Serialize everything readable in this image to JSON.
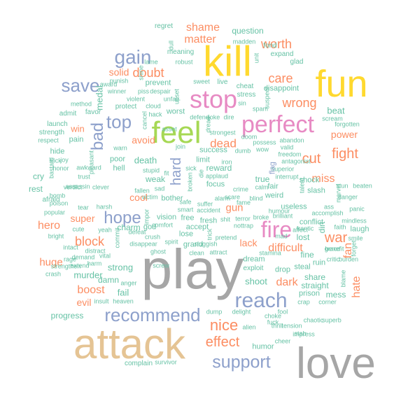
{
  "palette": {
    "grey": "#a6a6a6",
    "tan": "#e5c494",
    "yellow": "#ffd92f",
    "pink": "#e78ac3",
    "green": "#a6d854",
    "blue": "#8da0cb",
    "orange": "#fc8d62",
    "teal": "#66c2a5"
  },
  "words": [
    {
      "text": "play",
      "color": "grey"
    },
    {
      "text": "attack",
      "color": "tan"
    },
    {
      "text": "love",
      "color": "grey"
    },
    {
      "text": "kill",
      "color": "yellow"
    },
    {
      "text": "fun",
      "color": "yellow"
    },
    {
      "text": "feel",
      "color": "green"
    },
    {
      "text": "stop",
      "color": "pink"
    },
    {
      "text": "perfect",
      "color": "pink"
    },
    {
      "text": "fire",
      "color": "pink"
    },
    {
      "text": "reach",
      "color": "blue"
    },
    {
      "text": "recommend",
      "color": "blue"
    },
    {
      "text": "gain",
      "color": "blue"
    },
    {
      "text": "save",
      "color": "blue"
    },
    {
      "text": "support",
      "color": "blue"
    },
    {
      "text": "top",
      "color": "blue"
    },
    {
      "text": "bad",
      "color": "blue"
    },
    {
      "text": "hope",
      "color": "blue"
    },
    {
      "text": "hard",
      "color": "blue"
    },
    {
      "text": "nice",
      "color": "orange"
    },
    {
      "text": "effect",
      "color": "orange"
    },
    {
      "text": "war",
      "color": "orange"
    },
    {
      "text": "cut",
      "color": "orange"
    },
    {
      "text": "fight",
      "color": "orange"
    },
    {
      "text": "worth",
      "color": "orange"
    },
    {
      "text": "matter",
      "color": "orange"
    },
    {
      "text": "shame",
      "color": "orange"
    },
    {
      "text": "doubt",
      "color": "orange"
    },
    {
      "text": "care",
      "color": "orange"
    },
    {
      "text": "wrong",
      "color": "orange"
    },
    {
      "text": "dead",
      "color": "orange"
    },
    {
      "text": "block",
      "color": "orange"
    },
    {
      "text": "hero",
      "color": "orange"
    },
    {
      "text": "boost",
      "color": "orange"
    },
    {
      "text": "difficult",
      "color": "orange"
    },
    {
      "text": "dark",
      "color": "orange"
    },
    {
      "text": "hate",
      "color": "orange"
    },
    {
      "text": "fan",
      "color": "orange"
    },
    {
      "text": "miss",
      "color": "orange"
    },
    {
      "text": "gun",
      "color": "orange"
    },
    {
      "text": "huge",
      "color": "orange"
    },
    {
      "text": "power",
      "color": "orange"
    },
    {
      "text": "super",
      "color": "orange"
    },
    {
      "text": "evil",
      "color": "orange"
    },
    {
      "text": "solid",
      "color": "orange"
    },
    {
      "text": "avoid",
      "color": "orange"
    },
    {
      "text": "win",
      "color": "orange"
    },
    {
      "text": "cool",
      "color": "orange"
    },
    {
      "text": "lack",
      "color": "orange"
    },
    {
      "text": "fail",
      "color": "teal"
    },
    {
      "text": "strong",
      "color": "teal"
    },
    {
      "text": "murder",
      "color": "teal"
    },
    {
      "text": "shoot",
      "color": "teal"
    },
    {
      "text": "beat",
      "color": "teal"
    },
    {
      "text": "question",
      "color": "teal"
    },
    {
      "text": "death",
      "color": "teal"
    },
    {
      "text": "reward",
      "color": "teal"
    },
    {
      "text": "true",
      "color": "teal"
    },
    {
      "text": "fine",
      "color": "teal"
    },
    {
      "text": "share",
      "color": "teal"
    },
    {
      "text": "straight",
      "color": "teal"
    },
    {
      "text": "mess",
      "color": "teal"
    },
    {
      "text": "lost",
      "color": "teal"
    },
    {
      "text": "progress",
      "color": "teal"
    },
    {
      "text": "damn",
      "color": "teal"
    },
    {
      "text": "weak",
      "color": "teal"
    },
    {
      "text": "charm",
      "color": "teal"
    },
    {
      "text": "success",
      "color": "teal"
    },
    {
      "text": "limit",
      "color": "teal"
    },
    {
      "text": "focus",
      "color": "teal"
    },
    {
      "text": "disappoint",
      "color": "teal"
    },
    {
      "text": "vision",
      "color": "teal"
    },
    {
      "text": "free",
      "color": "teal"
    },
    {
      "text": "grand",
      "color": "teal"
    },
    {
      "text": "dream",
      "color": "teal"
    },
    {
      "text": "humor",
      "color": "teal"
    },
    {
      "text": "complain",
      "color": "teal"
    },
    {
      "text": "slash",
      "color": "teal"
    },
    {
      "text": "shock",
      "color": "teal"
    },
    {
      "text": "useless",
      "color": "teal"
    },
    {
      "text": "conflict",
      "color": "teal"
    },
    {
      "text": "laugh",
      "color": "teal"
    },
    {
      "text": "drop",
      "color": "teal"
    },
    {
      "text": "steal",
      "color": "teal"
    },
    {
      "text": "ruin",
      "color": "teal"
    },
    {
      "text": "prison",
      "color": "teal"
    },
    {
      "text": "worst",
      "color": "teal"
    },
    {
      "text": "rest",
      "color": "teal"
    },
    {
      "text": "cry",
      "color": "teal"
    },
    {
      "text": "lose",
      "color": "teal"
    },
    {
      "text": "bother",
      "color": "teal"
    },
    {
      "text": "god",
      "color": "teal"
    },
    {
      "text": "accept",
      "color": "teal"
    },
    {
      "text": "fresh",
      "color": "teal"
    },
    {
      "text": "fair",
      "color": "teal"
    },
    {
      "text": "weird",
      "color": "teal"
    },
    {
      "text": "poor",
      "color": "teal"
    },
    {
      "text": "hell",
      "color": "teal"
    },
    {
      "text": "pain",
      "color": "teal"
    },
    {
      "text": "hide",
      "color": "teal"
    },
    {
      "text": "admit",
      "color": "teal"
    },
    {
      "text": "launch",
      "color": "teal"
    },
    {
      "text": "strength",
      "color": "teal"
    },
    {
      "text": "respect",
      "color": "teal"
    },
    {
      "text": "method",
      "color": "teal"
    },
    {
      "text": "favor",
      "color": "teal"
    },
    {
      "text": "protect",
      "color": "teal"
    },
    {
      "text": "meaning",
      "color": "teal"
    },
    {
      "text": "prevent",
      "color": "teal"
    },
    {
      "text": "regret",
      "color": "teal"
    },
    {
      "text": "cheat",
      "color": "teal"
    },
    {
      "text": "stress",
      "color": "teal"
    },
    {
      "text": "fond",
      "color": "teal"
    },
    {
      "text": "expand",
      "color": "teal"
    },
    {
      "text": "glad",
      "color": "teal"
    },
    {
      "text": "madden",
      "color": "teal"
    },
    {
      "text": "lame",
      "color": "teal"
    },
    {
      "text": "robust",
      "color": "teal"
    },
    {
      "text": "punish",
      "color": "teal"
    },
    {
      "text": "award",
      "color": "teal"
    },
    {
      "text": "winner",
      "color": "teal"
    },
    {
      "text": "violent",
      "color": "teal"
    },
    {
      "text": "piss",
      "color": "teal"
    },
    {
      "text": "despair",
      "color": "teal"
    },
    {
      "text": "unfair",
      "color": "teal"
    },
    {
      "text": "cloud",
      "color": "teal"
    },
    {
      "text": "hack",
      "color": "teal"
    },
    {
      "text": "spam",
      "color": "teal"
    },
    {
      "text": "sin",
      "color": "teal"
    },
    {
      "text": "live",
      "color": "teal"
    },
    {
      "text": "sweet",
      "color": "teal"
    },
    {
      "text": "joke",
      "color": "teal"
    },
    {
      "text": "dire",
      "color": "teal"
    },
    {
      "text": "strongest",
      "color": "teal"
    },
    {
      "text": "scream",
      "color": "teal"
    },
    {
      "text": "forgotten",
      "color": "teal"
    },
    {
      "text": "abandon",
      "color": "teal"
    },
    {
      "text": "possess",
      "color": "teal"
    },
    {
      "text": "valid",
      "color": "teal"
    },
    {
      "text": "freedom",
      "color": "teal"
    },
    {
      "text": "antagonist",
      "color": "teal"
    },
    {
      "text": "wow",
      "color": "teal"
    },
    {
      "text": "dumb",
      "color": "teal"
    },
    {
      "text": "superior",
      "color": "teal"
    },
    {
      "text": "interrupt",
      "color": "teal"
    },
    {
      "text": "stun",
      "color": "teal"
    },
    {
      "text": "beaten",
      "color": "teal"
    },
    {
      "text": "danger",
      "color": "teal"
    },
    {
      "text": "panic",
      "color": "teal"
    },
    {
      "text": "mindless",
      "color": "teal"
    },
    {
      "text": "ass",
      "color": "teal"
    },
    {
      "text": "accomplish",
      "color": "teal"
    },
    {
      "text": "faith",
      "color": "teal"
    },
    {
      "text": "smile",
      "color": "teal"
    },
    {
      "text": "benefit",
      "color": "teal"
    },
    {
      "text": "grace",
      "color": "teal"
    },
    {
      "text": "frantic",
      "color": "teal"
    },
    {
      "text": "brilliant",
      "color": "teal"
    },
    {
      "text": "affect",
      "color": "teal"
    },
    {
      "text": "humour",
      "color": "teal"
    },
    {
      "text": "calm",
      "color": "teal"
    },
    {
      "text": "crime",
      "color": "teal"
    },
    {
      "text": "scare",
      "color": "teal"
    },
    {
      "text": "blind",
      "color": "teal"
    },
    {
      "text": "alarm",
      "color": "teal"
    },
    {
      "text": "fame",
      "color": "teal"
    },
    {
      "text": "terror",
      "color": "teal"
    },
    {
      "text": "broke",
      "color": "teal"
    },
    {
      "text": "nottrap",
      "color": "teal"
    },
    {
      "text": "shit",
      "color": "teal"
    },
    {
      "text": "pretend",
      "color": "teal"
    },
    {
      "text": "attract",
      "color": "teal"
    },
    {
      "text": "clean",
      "color": "teal"
    },
    {
      "text": "exploit",
      "color": "teal"
    },
    {
      "text": "stamina",
      "color": "teal"
    },
    {
      "text": "mad",
      "color": "teal"
    },
    {
      "text": "tension",
      "color": "teal"
    },
    {
      "text": "superb",
      "color": "teal"
    },
    {
      "text": "chaotic",
      "color": "teal"
    },
    {
      "text": "impress",
      "color": "teal"
    },
    {
      "text": "stab",
      "color": "teal"
    },
    {
      "text": "cheer",
      "color": "teal"
    },
    {
      "text": "choke",
      "color": "teal"
    },
    {
      "text": "thrill",
      "color": "teal"
    },
    {
      "text": "fool",
      "color": "teal"
    },
    {
      "text": "delight",
      "color": "teal"
    },
    {
      "text": "dump",
      "color": "teal"
    },
    {
      "text": "alien",
      "color": "teal"
    },
    {
      "text": "fuck",
      "color": "teal"
    },
    {
      "text": "survivor",
      "color": "teal"
    },
    {
      "text": "crap",
      "color": "teal"
    },
    {
      "text": "corner",
      "color": "teal"
    },
    {
      "text": "blame",
      "color": "teal"
    },
    {
      "text": "critic",
      "color": "teal"
    },
    {
      "text": "burden",
      "color": "teal"
    },
    {
      "text": "accident",
      "color": "teal"
    },
    {
      "text": "smart",
      "color": "teal"
    },
    {
      "text": "comfort",
      "color": "teal"
    },
    {
      "text": "crush",
      "color": "teal"
    },
    {
      "text": "spirit",
      "color": "teal"
    },
    {
      "text": "ghost",
      "color": "teal"
    },
    {
      "text": "disappear",
      "color": "teal"
    },
    {
      "text": "defeat",
      "color": "teal"
    },
    {
      "text": "sluggish",
      "color": "teal"
    },
    {
      "text": "applaud",
      "color": "teal"
    },
    {
      "text": "iron",
      "color": "teal"
    },
    {
      "text": "cancel",
      "color": "teal"
    },
    {
      "text": "fallen",
      "color": "teal"
    },
    {
      "text": "stupid",
      "color": "teal"
    },
    {
      "text": "sad",
      "color": "teal"
    },
    {
      "text": "join",
      "color": "teal"
    },
    {
      "text": "sick",
      "color": "teal"
    },
    {
      "text": "suffer",
      "color": "teal"
    },
    {
      "text": "safe",
      "color": "teal"
    },
    {
      "text": "broken",
      "color": "teal"
    },
    {
      "text": "die",
      "color": "teal"
    },
    {
      "text": "victim",
      "color": "teal"
    },
    {
      "text": "joy",
      "color": "teal"
    },
    {
      "text": "honor",
      "color": "teal"
    },
    {
      "text": "awkward",
      "color": "teal"
    },
    {
      "text": "trust",
      "color": "teal"
    },
    {
      "text": "bomb",
      "color": "teal"
    },
    {
      "text": "slick",
      "color": "teal"
    },
    {
      "text": "verdict",
      "color": "teal"
    },
    {
      "text": "afraid",
      "color": "teal"
    },
    {
      "text": "popular",
      "color": "teal"
    },
    {
      "text": "bright",
      "color": "teal"
    },
    {
      "text": "intact",
      "color": "teal"
    },
    {
      "text": "demand",
      "color": "teal"
    },
    {
      "text": "rage",
      "color": "teal"
    },
    {
      "text": "strengthen",
      "color": "teal"
    },
    {
      "text": "extend",
      "color": "teal"
    },
    {
      "text": "harm",
      "color": "teal"
    },
    {
      "text": "insult",
      "color": "teal"
    },
    {
      "text": "vital",
      "color": "teal"
    },
    {
      "text": "anger",
      "color": "teal"
    },
    {
      "text": "heaven",
      "color": "teal"
    },
    {
      "text": "cute",
      "color": "teal"
    },
    {
      "text": "yeah",
      "color": "teal"
    },
    {
      "text": "distract",
      "color": "teal"
    },
    {
      "text": "tear",
      "color": "teal"
    },
    {
      "text": "harsh",
      "color": "teal"
    },
    {
      "text": "assassin",
      "color": "teal"
    },
    {
      "text": "poison",
      "color": "teal"
    },
    {
      "text": "clever",
      "color": "teal"
    },
    {
      "text": "bastard",
      "color": "teal"
    },
    {
      "text": "warn",
      "color": "teal"
    },
    {
      "text": "pleasant",
      "color": "teal"
    },
    {
      "text": "asset",
      "color": "teal"
    },
    {
      "text": "defend",
      "color": "teal"
    },
    {
      "text": "talent",
      "color": "teal"
    },
    {
      "text": "doom",
      "color": "teal"
    },
    {
      "text": "suspect",
      "color": "teal"
    },
    {
      "text": "unit",
      "color": "teal"
    },
    {
      "text": "marvel",
      "color": "teal"
    },
    {
      "text": "dirt",
      "color": "teal"
    },
    {
      "text": "forget",
      "color": "teal"
    },
    {
      "text": "dread",
      "color": "teal"
    },
    {
      "text": "screw",
      "color": "teal"
    },
    {
      "text": "fit",
      "color": "teal"
    },
    {
      "text": "crash",
      "color": "teal"
    },
    {
      "text": "dull",
      "color": "teal"
    },
    {
      "text": "upset",
      "color": "teal"
    },
    {
      "text": "shine",
      "color": "teal"
    },
    {
      "text": "medal",
      "color": "teal"
    },
    {
      "text": "commit",
      "color": "teal"
    },
    {
      "text": "impor",
      "color": "teal"
    },
    {
      "text": "trick",
      "color": "teal"
    },
    {
      "text": "flag",
      "color": "blue"
    },
    {
      "text": "stuck",
      "color": "teal"
    },
    {
      "text": "distress",
      "color": "teal"
    },
    {
      "text": "strike",
      "color": "teal"
    },
    {
      "text": "hurt",
      "color": "teal"
    }
  ]
}
